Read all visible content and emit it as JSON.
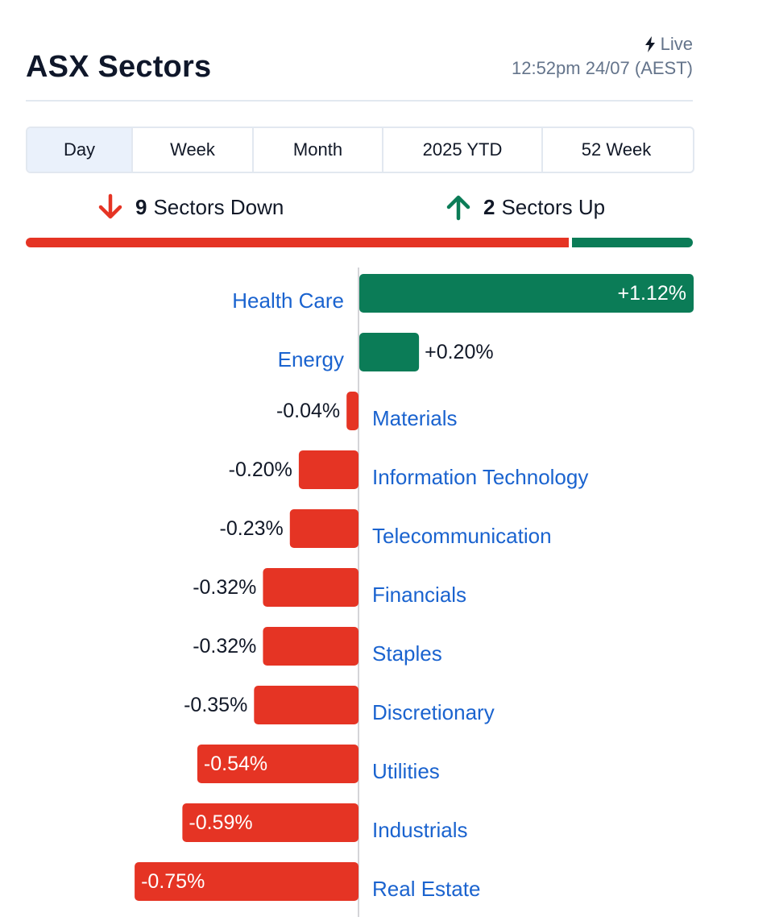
{
  "header": {
    "title": "ASX Sectors",
    "live_label": "Live",
    "timestamp": "12:52pm 24/07 (AEST)"
  },
  "tabs": [
    {
      "label": "Day",
      "active": true
    },
    {
      "label": "Week",
      "active": false
    },
    {
      "label": "Month",
      "active": false
    },
    {
      "label": "2025 YTD",
      "active": false
    },
    {
      "label": "52 Week",
      "active": false
    }
  ],
  "summary": {
    "down_count": "9",
    "down_label": "Sectors Down",
    "up_count": "2",
    "up_label": "Sectors Up"
  },
  "colors": {
    "up": "#0b7c57",
    "down": "#e53424",
    "label": "#1a63cf",
    "axis": "#d4d4d8"
  },
  "chart_data": {
    "type": "bar",
    "orientation": "horizontal",
    "categories": [
      "Health Care",
      "Energy",
      "Materials",
      "Information Technology",
      "Telecommunication",
      "Financials",
      "Staples",
      "Discretionary",
      "Utilities",
      "Industrials",
      "Real Estate"
    ],
    "values": [
      1.12,
      0.2,
      -0.04,
      -0.2,
      -0.23,
      -0.32,
      -0.32,
      -0.35,
      -0.54,
      -0.59,
      -0.75
    ],
    "value_labels": [
      "+1.12%",
      "+0.20%",
      "-0.04%",
      "-0.20%",
      "-0.23%",
      "-0.32%",
      "-0.32%",
      "-0.35%",
      "-0.54%",
      "-0.59%",
      "-0.75%"
    ],
    "xlim": [
      -0.75,
      1.12
    ],
    "grid": false,
    "legend": "none"
  }
}
